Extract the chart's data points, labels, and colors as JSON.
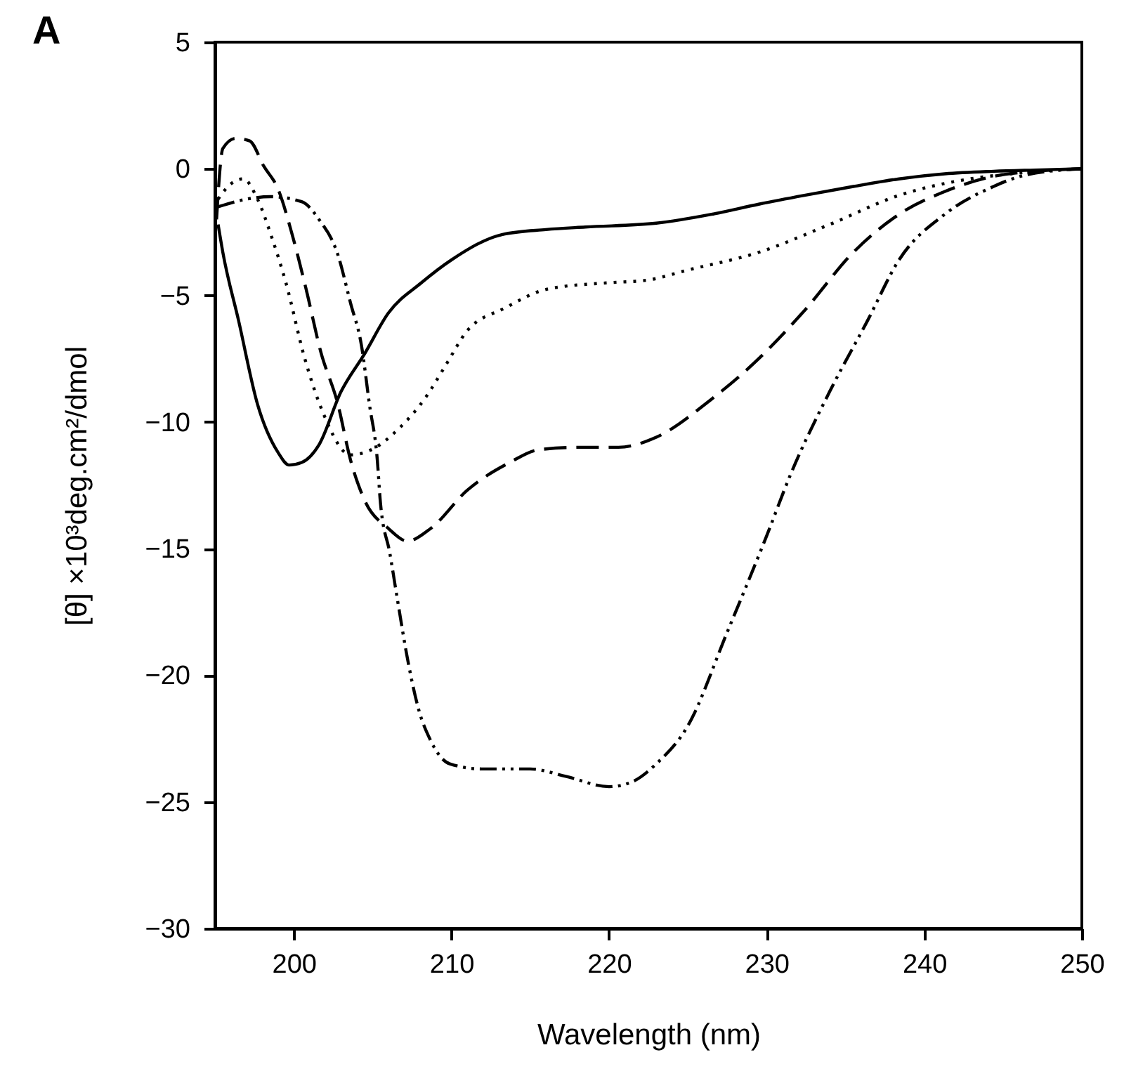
{
  "chart_data": {
    "type": "line",
    "title": "A",
    "xlabel": "Wavelength (nm)",
    "ylabel": "[θ] ×10³deg.cm²/dmol",
    "xlim": [
      195,
      250
    ],
    "ylim": [
      -30,
      5
    ],
    "xticks": [
      200,
      210,
      220,
      230,
      240,
      250
    ],
    "yticks": [
      5,
      0,
      -5,
      -10,
      -15,
      -20,
      -25,
      -30
    ],
    "grid": false,
    "marker": "none",
    "series": [
      {
        "color": "#000000",
        "line_style": "solid",
        "x": [
          195.2,
          195.5,
          196.5,
          197.7,
          199.0,
          199.7,
          200.5,
          201.6,
          203,
          204.5,
          206,
          208.1,
          210,
          213.2,
          216,
          218.5,
          223,
          226.5,
          229.5,
          232.4,
          235.5,
          238.4,
          241.3,
          244.4,
          247,
          250
        ],
        "values": [
          -2.2,
          -3.3,
          -6.0,
          -9.3,
          -11.2,
          -11.7,
          -11.6,
          -10.9,
          -8.8,
          -7.3,
          -5.7,
          -4.5,
          -3.6,
          -2.6,
          -2.4,
          -2.3,
          -2.15,
          -1.8,
          -1.4,
          -1.05,
          -0.7,
          -0.4,
          -0.2,
          -0.1,
          -0.05,
          0
        ]
      },
      {
        "color": "#000000",
        "line_style": "dotted",
        "x": [
          195.2,
          196,
          196.8,
          197.7,
          198.6,
          199.5,
          200.7,
          201.9,
          203.6,
          205.2,
          206.6,
          208.4,
          209.6,
          211,
          213.4,
          216.1,
          220,
          222.4,
          225,
          229.5,
          234,
          238.4,
          242.9,
          245.5,
          250
        ],
        "values": [
          -1.2,
          -0.6,
          -0.4,
          -1.2,
          -2.7,
          -4.5,
          -7.5,
          -9.7,
          -11.3,
          -11.0,
          -10.3,
          -9.0,
          -7.8,
          -6.4,
          -5.5,
          -4.75,
          -4.5,
          -4.4,
          -4.0,
          -3.3,
          -2.2,
          -1.05,
          -0.4,
          -0.2,
          0
        ]
      },
      {
        "color": "#000000",
        "line_style": "dashed",
        "x": [
          195.1,
          195.5,
          196.3,
          197.2,
          198.1,
          199,
          199.9,
          200.8,
          201.7,
          202.8,
          203.6,
          204.5,
          206,
          207.2,
          208.7,
          211,
          213.7,
          215.5,
          218,
          220.6,
          223,
          226.5,
          229.5,
          232.4,
          235.5,
          238.4,
          241.3,
          244.4,
          247,
          250
        ],
        "values": [
          -2.0,
          0.8,
          1.2,
          1.1,
          0.1,
          -0.8,
          -2.6,
          -4.8,
          -7.2,
          -9.3,
          -11.5,
          -13.1,
          -14.2,
          -14.7,
          -14.2,
          -12.7,
          -11.6,
          -11.1,
          -11.0,
          -11.0,
          -10.6,
          -9.1,
          -7.5,
          -5.6,
          -3.3,
          -1.8,
          -0.9,
          -0.3,
          -0.1,
          0
        ]
      },
      {
        "color": "#000000",
        "line_style": "dashdot",
        "x": [
          195.2,
          197,
          198.5,
          200.5,
          201.6,
          202.8,
          203.6,
          204.3,
          204.8,
          205.3,
          205.5,
          206.1,
          206.6,
          207.2,
          207.9,
          208.7,
          209.9,
          211.9,
          215,
          217.3,
          220,
          221.5,
          223,
          225,
          227.5,
          230,
          231.5,
          234,
          236.4,
          238.4,
          241.3,
          244.4,
          246.4,
          250
        ],
        "values": [
          -1.5,
          -1.2,
          -1.1,
          -1.3,
          -2.0,
          -3.4,
          -5.3,
          -7.0,
          -9.3,
          -11.5,
          -13.2,
          -15.2,
          -17.1,
          -19.3,
          -21.3,
          -22.6,
          -23.5,
          -23.7,
          -23.7,
          -24.0,
          -24.4,
          -24.2,
          -23.5,
          -22.0,
          -18.3,
          -14.5,
          -12.1,
          -8.8,
          -6.0,
          -3.6,
          -1.8,
          -0.7,
          -0.25,
          0
        ]
      }
    ]
  }
}
